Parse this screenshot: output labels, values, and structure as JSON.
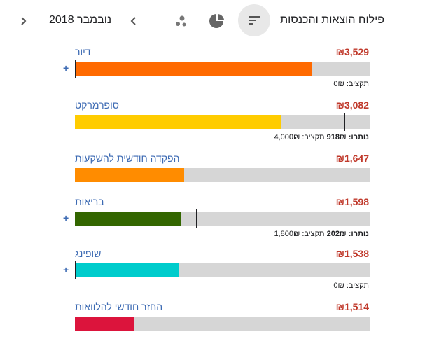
{
  "header": {
    "title": "פילוח הוצאות והכנסות",
    "month": "נובמבר 2018"
  },
  "colors": {
    "accent": "#3c6ab3",
    "amount": "#c0392b",
    "track": "#d6d6d6"
  },
  "categories": [
    {
      "name": "דיור",
      "amount": "₪3,529",
      "color": "#ff6a00",
      "fill_fraction": 0.8,
      "marker": true,
      "plus": true,
      "budget_text": "תקציב: 0₪",
      "remaining_label": "",
      "remaining_value": ""
    },
    {
      "name": "סופרמרקט",
      "amount": "₪3,082",
      "color": "#ffcc00",
      "fill_fraction": 0.7,
      "marker": true,
      "marker_fraction": 0.91,
      "plus": false,
      "remaining_label": "נותרו:",
      "remaining_value": "918₪",
      "budget_text": "תקציב: 4,000₪"
    },
    {
      "name": "הפקדה חודשית להשקעות",
      "amount": "₪1,647",
      "color": "#ff8c00",
      "fill_fraction": 0.37,
      "marker": false,
      "plus": false,
      "budget_text": "",
      "remaining_label": "",
      "remaining_value": ""
    },
    {
      "name": "בריאות",
      "amount": "₪1,598",
      "color": "#336600",
      "fill_fraction": 0.36,
      "marker": true,
      "marker_fraction": 0.41,
      "plus": true,
      "remaining_label": "נותרו:",
      "remaining_value": "202₪",
      "budget_text": "תקציב: 1,800₪"
    },
    {
      "name": "שופינג",
      "amount": "₪1,538",
      "color": "#00cccc",
      "fill_fraction": 0.35,
      "marker": true,
      "plus": true,
      "budget_text": "תקציב: 0₪",
      "remaining_label": "",
      "remaining_value": ""
    },
    {
      "name": "החזר חודשי להלוואות",
      "amount": "₪1,514",
      "color": "#dc143c",
      "fill_fraction": 0.2,
      "marker": false,
      "plus": false,
      "budget_text": "",
      "remaining_label": "",
      "remaining_value": ""
    }
  ]
}
